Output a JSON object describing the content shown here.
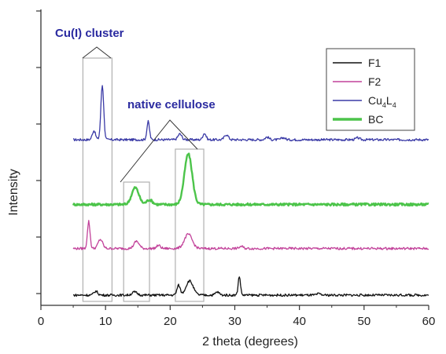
{
  "chart_data": {
    "type": "line",
    "xlabel": "2 theta (degrees)",
    "ylabel": "Intensity",
    "xlim": [
      0,
      60
    ],
    "xticks": [
      0,
      10,
      20,
      30,
      40,
      50,
      60
    ],
    "y_axis_numbers_shown": false,
    "grid": false,
    "legend_position": "top-right",
    "legend": [
      {
        "series": "F1",
        "label": "F1",
        "color": "#111111"
      },
      {
        "series": "F2",
        "label": "F2",
        "color": "#c2429a"
      },
      {
        "series": "Cu4L4",
        "label_main": "Cu",
        "label_sub1": "4",
        "label_mid": "L",
        "label_sub2": "4",
        "color": "#3a3aa6"
      },
      {
        "series": "BC",
        "label": "BC",
        "color": "#4cc44a"
      }
    ],
    "annotations": [
      {
        "text": "Cu(I) cluster",
        "color": "#2a2aa0",
        "boxes": [
          [
            6.5,
            11.0
          ]
        ]
      },
      {
        "text": "native cellulose",
        "color": "#2a2aa0",
        "boxes": [
          [
            12.8,
            16.8
          ],
          [
            20.8,
            25.2
          ]
        ]
      }
    ],
    "series": [
      {
        "name": "Cu4L4",
        "color": "#3a3aa6",
        "baseline": 6.0,
        "peaks": [
          [
            8.2,
            0.35,
            0.25
          ],
          [
            9.5,
            2.1,
            0.22
          ],
          [
            16.6,
            0.7,
            0.2
          ],
          [
            21.5,
            0.22,
            0.3
          ],
          [
            25.3,
            0.25,
            0.25
          ],
          [
            28.7,
            0.2,
            0.3
          ],
          [
            35.0,
            0.1,
            0.3
          ],
          [
            37.5,
            0.08,
            0.3
          ],
          [
            49.0,
            0.07,
            0.3
          ]
        ]
      },
      {
        "name": "BC",
        "color": "#4cc44a",
        "baseline": 3.5,
        "peaks": [
          [
            14.6,
            0.65,
            0.55
          ],
          [
            16.8,
            0.18,
            0.45
          ],
          [
            22.8,
            1.95,
            0.6
          ]
        ]
      },
      {
        "name": "F2",
        "color": "#c2429a",
        "baseline": 1.8,
        "peaks": [
          [
            7.4,
            1.05,
            0.2
          ],
          [
            9.2,
            0.35,
            0.35
          ],
          [
            14.8,
            0.28,
            0.4
          ],
          [
            18.2,
            0.12,
            0.3
          ],
          [
            22.8,
            0.55,
            0.6
          ],
          [
            31.0,
            0.08,
            0.3
          ]
        ]
      },
      {
        "name": "F1",
        "color": "#111111",
        "baseline": 0.0,
        "peaks": [
          [
            8.5,
            0.15,
            0.3
          ],
          [
            14.5,
            0.12,
            0.4
          ],
          [
            21.3,
            0.38,
            0.25
          ],
          [
            23.0,
            0.55,
            0.55
          ],
          [
            27.3,
            0.12,
            0.3
          ],
          [
            30.7,
            0.72,
            0.18
          ],
          [
            43.0,
            0.05,
            0.3
          ]
        ]
      }
    ]
  }
}
